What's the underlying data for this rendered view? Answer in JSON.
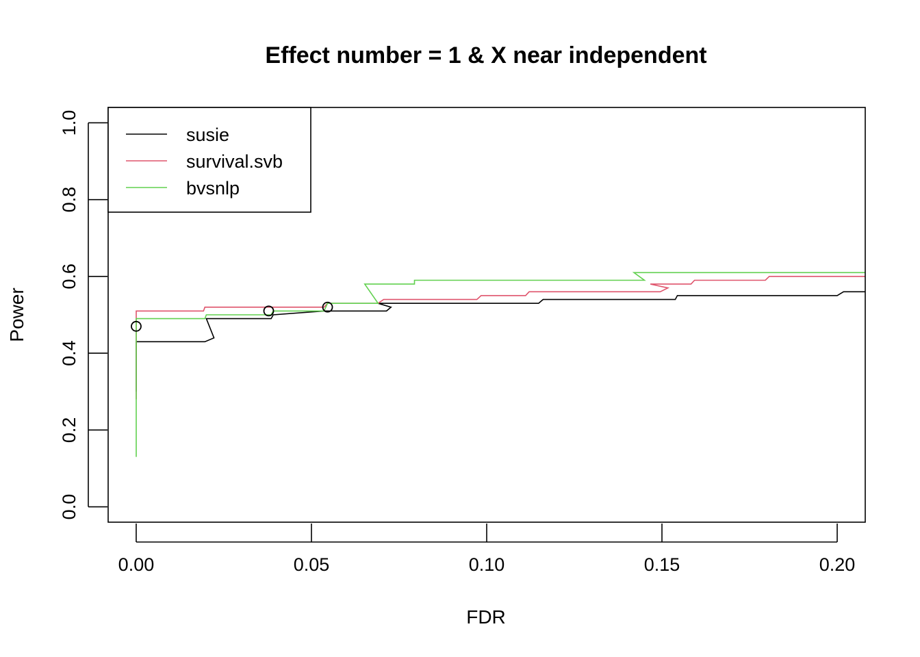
{
  "chart_data": {
    "type": "line",
    "title": "Effect number = 1 & X near independent",
    "xlabel": "FDR",
    "ylabel": "Power",
    "xlim": [
      -0.008,
      0.208
    ],
    "ylim": [
      -0.04,
      1.04
    ],
    "xticks": [
      0.0,
      0.05,
      0.1,
      0.15,
      0.2
    ],
    "xtick_labels": [
      "0.00",
      "0.05",
      "0.10",
      "0.15",
      "0.20"
    ],
    "yticks": [
      0.0,
      0.2,
      0.4,
      0.6,
      0.8,
      1.0
    ],
    "ytick_labels": [
      "0.0",
      "0.2",
      "0.4",
      "0.6",
      "0.8",
      "1.0"
    ],
    "grid": false,
    "legend_position": "top-left",
    "series": [
      {
        "name": "susie",
        "color": "#000000",
        "points": [
          [
            0.0,
            0.3
          ],
          [
            0.0,
            0.43
          ],
          [
            0.0196,
            0.43
          ],
          [
            0.0222,
            0.44
          ],
          [
            0.02,
            0.49
          ],
          [
            0.0385,
            0.49
          ],
          [
            0.0391,
            0.5
          ],
          [
            0.0536,
            0.51
          ],
          [
            0.0714,
            0.51
          ],
          [
            0.0727,
            0.52
          ],
          [
            0.069,
            0.53
          ],
          [
            0.1148,
            0.53
          ],
          [
            0.1161,
            0.54
          ],
          [
            0.1538,
            0.54
          ],
          [
            0.1544,
            0.55
          ],
          [
            0.1667,
            0.55
          ],
          [
            0.2,
            0.55
          ],
          [
            0.2018,
            0.56
          ],
          [
            0.208,
            0.56
          ]
        ]
      },
      {
        "name": "survival.svb",
        "color": "#DF536B",
        "points": [
          [
            0.0,
            0.28
          ],
          [
            0.0,
            0.51
          ],
          [
            0.0192,
            0.51
          ],
          [
            0.0196,
            0.52
          ],
          [
            0.0536,
            0.52
          ],
          [
            0.0546,
            0.53
          ],
          [
            0.069,
            0.53
          ],
          [
            0.0706,
            0.54
          ],
          [
            0.0972,
            0.54
          ],
          [
            0.0984,
            0.55
          ],
          [
            0.1111,
            0.55
          ],
          [
            0.1121,
            0.56
          ],
          [
            0.1495,
            0.56
          ],
          [
            0.1517,
            0.57
          ],
          [
            0.1467,
            0.58
          ],
          [
            0.1583,
            0.58
          ],
          [
            0.1593,
            0.59
          ],
          [
            0.1795,
            0.59
          ],
          [
            0.1806,
            0.6
          ],
          [
            0.208,
            0.6
          ]
        ]
      },
      {
        "name": "bvsnlp",
        "color": "#61D04F",
        "points": [
          [
            0.0,
            0.13
          ],
          [
            0.0,
            0.49
          ],
          [
            0.0196,
            0.49
          ],
          [
            0.02,
            0.5
          ],
          [
            0.0385,
            0.5
          ],
          [
            0.0391,
            0.51
          ],
          [
            0.0536,
            0.51
          ],
          [
            0.0546,
            0.53
          ],
          [
            0.069,
            0.53
          ],
          [
            0.0652,
            0.58
          ],
          [
            0.0794,
            0.58
          ],
          [
            0.0794,
            0.59
          ],
          [
            0.145,
            0.59
          ],
          [
            0.142,
            0.61
          ],
          [
            0.208,
            0.61
          ]
        ]
      }
    ],
    "markers": [
      {
        "x": 0.0,
        "y": 0.47
      },
      {
        "x": 0.0378,
        "y": 0.51
      },
      {
        "x": 0.0546,
        "y": 0.52
      }
    ]
  }
}
